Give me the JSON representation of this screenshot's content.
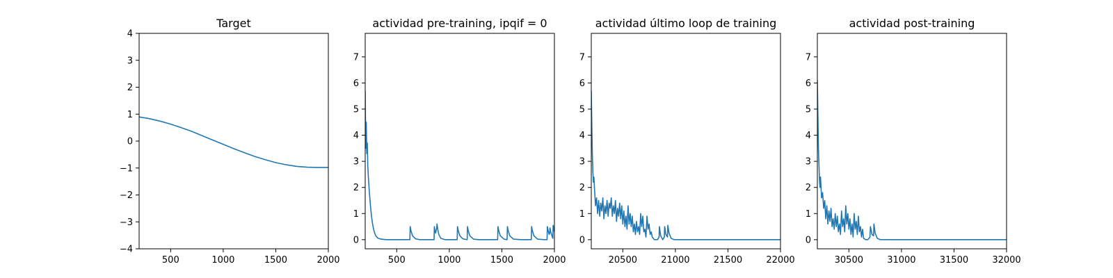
{
  "figure": {
    "background": "#ffffff",
    "line_color": "#1f77b4"
  },
  "chart_data": [
    {
      "type": "line",
      "title": "Target",
      "xlabel": "",
      "ylabel": "",
      "xlim": [
        200,
        2000
      ],
      "ylim": [
        -4,
        4
      ],
      "xticks": [
        500,
        1000,
        1500,
        2000
      ],
      "yticks": [
        -4,
        -3,
        -2,
        -1,
        0,
        1,
        2,
        3,
        4
      ],
      "ytick_labels": [
        "−4",
        "−3",
        "−2",
        "−1",
        "0",
        "1",
        "2",
        "3",
        "4"
      ],
      "grid": false,
      "series": [
        {
          "x": [
            200,
            300,
            400,
            500,
            600,
            700,
            800,
            900,
            1000,
            1100,
            1200,
            1300,
            1400,
            1500,
            1600,
            1700,
            1800,
            1900,
            2000
          ],
          "values": [
            0.9,
            0.83,
            0.74,
            0.63,
            0.5,
            0.36,
            0.2,
            0.04,
            -0.12,
            -0.28,
            -0.43,
            -0.57,
            -0.69,
            -0.8,
            -0.88,
            -0.94,
            -0.97,
            -0.98,
            -0.98
          ]
        }
      ]
    },
    {
      "type": "line",
      "title": "actividad pre-training, ipqif = 0",
      "xlabel": "",
      "ylabel": "",
      "xlim": [
        200,
        2000
      ],
      "ylim": [
        -0.35,
        7.9
      ],
      "xticks": [
        500,
        1000,
        1500,
        2000
      ],
      "yticks": [
        0,
        1,
        2,
        3,
        4,
        5,
        6,
        7
      ],
      "ytick_labels": [
        "0",
        "1",
        "2",
        "3",
        "4",
        "5",
        "6",
        "7"
      ],
      "grid": false,
      "series": [
        {
          "x": [
            200,
            205,
            210,
            215,
            220,
            225,
            230,
            240,
            250,
            260,
            270,
            280,
            290,
            300,
            320,
            350,
            400,
            500,
            600,
            625,
            628,
            635,
            650,
            680,
            720,
            800,
            855,
            858,
            863,
            870,
            880,
            883,
            890,
            900,
            920,
            960,
            1000,
            1075,
            1078,
            1085,
            1100,
            1130,
            1170,
            1173,
            1180,
            1195,
            1230,
            1280,
            1350,
            1460,
            1463,
            1470,
            1485,
            1520,
            1550,
            1553,
            1560,
            1575,
            1610,
            1680,
            1780,
            1783,
            1790,
            1805,
            1840,
            1900,
            1930,
            1933,
            1940,
            1950,
            1955,
            1958,
            1965,
            1980,
            1985,
            1988,
            1995,
            2000
          ],
          "values": [
            5.7,
            3.5,
            4.5,
            3.3,
            3.7,
            2.8,
            2.4,
            1.8,
            1.3,
            0.9,
            0.6,
            0.4,
            0.25,
            0.15,
            0.06,
            0.02,
            0.0,
            0.0,
            0.0,
            0.0,
            0.5,
            0.35,
            0.15,
            0.03,
            0.0,
            0.0,
            0.0,
            0.5,
            0.35,
            0.25,
            0.45,
            0.6,
            0.4,
            0.2,
            0.05,
            0.0,
            0.0,
            0.0,
            0.5,
            0.35,
            0.15,
            0.03,
            0.0,
            0.5,
            0.35,
            0.15,
            0.02,
            0.0,
            0.0,
            0.0,
            0.5,
            0.35,
            0.15,
            0.02,
            0.0,
            0.5,
            0.35,
            0.15,
            0.02,
            0.0,
            0.0,
            0.5,
            0.35,
            0.15,
            0.02,
            0.0,
            0.0,
            0.5,
            0.35,
            0.2,
            0.25,
            0.45,
            0.3,
            0.1,
            0.05,
            0.55,
            0.4,
            0.3
          ]
        }
      ]
    },
    {
      "type": "line",
      "title": "actividad último loop de training",
      "xlabel": "",
      "ylabel": "",
      "xlim": [
        20200,
        22000
      ],
      "ylim": [
        -0.35,
        7.9
      ],
      "xticks": [
        20500,
        21000,
        21500,
        22000
      ],
      "yticks": [
        0,
        1,
        2,
        3,
        4,
        5,
        6,
        7
      ],
      "ytick_labels": [
        "0",
        "1",
        "2",
        "3",
        "4",
        "5",
        "6",
        "7"
      ],
      "grid": false,
      "series": [
        {
          "x": [
            20200,
            20205,
            20210,
            20215,
            20220,
            20225,
            20230,
            20240,
            20250,
            20260,
            20270,
            20280,
            20290,
            20300,
            20310,
            20320,
            20330,
            20340,
            20350,
            20360,
            20370,
            20380,
            20390,
            20400,
            20410,
            20420,
            20430,
            20440,
            20450,
            20460,
            20470,
            20480,
            20490,
            20500,
            20510,
            20520,
            20530,
            20540,
            20550,
            20560,
            20570,
            20580,
            20590,
            20600,
            20610,
            20620,
            20630,
            20640,
            20650,
            20660,
            20670,
            20680,
            20690,
            20700,
            20710,
            20720,
            20730,
            20740,
            20750,
            20760,
            20770,
            20780,
            20800,
            20830,
            20845,
            20848,
            20860,
            20880,
            20895,
            20898,
            20910,
            20925,
            20928,
            20940,
            20960,
            20990,
            21050,
            21200,
            21500,
            22000
          ],
          "values": [
            5.7,
            4.4,
            3.3,
            2.6,
            2.2,
            2.4,
            2.0,
            1.3,
            1.6,
            1.0,
            1.5,
            0.9,
            1.4,
            1.1,
            1.6,
            0.8,
            1.3,
            1.0,
            1.5,
            0.9,
            1.4,
            1.2,
            1.6,
            0.9,
            1.3,
            1.0,
            1.5,
            0.7,
            1.2,
            0.9,
            1.4,
            0.8,
            1.3,
            0.6,
            1.1,
            0.5,
            0.9,
            0.4,
            1.3,
            0.6,
            1.0,
            0.5,
            0.9,
            0.3,
            0.6,
            0.2,
            0.7,
            0.3,
            0.5,
            0.2,
            1.0,
            0.5,
            0.9,
            0.3,
            0.4,
            0.1,
            0.9,
            0.4,
            0.6,
            0.2,
            0.3,
            0.1,
            0.0,
            0.0,
            0.1,
            0.5,
            0.15,
            0.0,
            0.1,
            0.5,
            0.2,
            0.1,
            0.55,
            0.25,
            0.05,
            0.0,
            0.0,
            0.0,
            0.0,
            0.0
          ]
        }
      ]
    },
    {
      "type": "line",
      "title": "actividad post-training",
      "xlabel": "",
      "ylabel": "",
      "xlim": [
        30200,
        32000
      ],
      "ylim": [
        -0.35,
        7.9
      ],
      "xticks": [
        30500,
        31000,
        31500,
        32000
      ],
      "yticks": [
        0,
        1,
        2,
        3,
        4,
        5,
        6,
        7
      ],
      "ytick_labels": [
        "0",
        "1",
        "2",
        "3",
        "4",
        "5",
        "6",
        "7"
      ],
      "grid": false,
      "series": [
        {
          "x": [
            30200,
            30205,
            30210,
            30215,
            30220,
            30225,
            30230,
            30240,
            30250,
            30260,
            30270,
            30280,
            30290,
            30300,
            30310,
            30320,
            30330,
            30340,
            30350,
            30360,
            30370,
            30380,
            30390,
            30400,
            30410,
            30420,
            30430,
            30440,
            30450,
            30460,
            30470,
            30480,
            30490,
            30500,
            30510,
            30520,
            30530,
            30540,
            30550,
            30560,
            30570,
            30580,
            30590,
            30600,
            30610,
            30620,
            30630,
            30640,
            30660,
            30680,
            30700,
            30705,
            30720,
            30735,
            30738,
            30750,
            30770,
            30800,
            30900,
            31200,
            31600,
            32000
          ],
          "values": [
            6.1,
            4.8,
            3.5,
            2.9,
            2.3,
            2.0,
            2.4,
            1.6,
            1.8,
            1.2,
            1.5,
            0.8,
            1.3,
            0.6,
            1.1,
            0.7,
            1.2,
            0.5,
            0.8,
            0.4,
            1.0,
            0.5,
            0.9,
            0.3,
            0.6,
            0.2,
            1.1,
            0.5,
            0.8,
            0.3,
            1.3,
            0.6,
            1.0,
            0.4,
            0.8,
            0.2,
            0.6,
            0.1,
            1.0,
            0.4,
            0.7,
            0.2,
            0.9,
            0.3,
            0.5,
            0.1,
            0.4,
            0.05,
            0.0,
            0.0,
            0.1,
            0.5,
            0.2,
            0.15,
            0.6,
            0.25,
            0.05,
            0.0,
            0.0,
            0.0,
            0.0,
            0.0
          ]
        }
      ]
    }
  ]
}
